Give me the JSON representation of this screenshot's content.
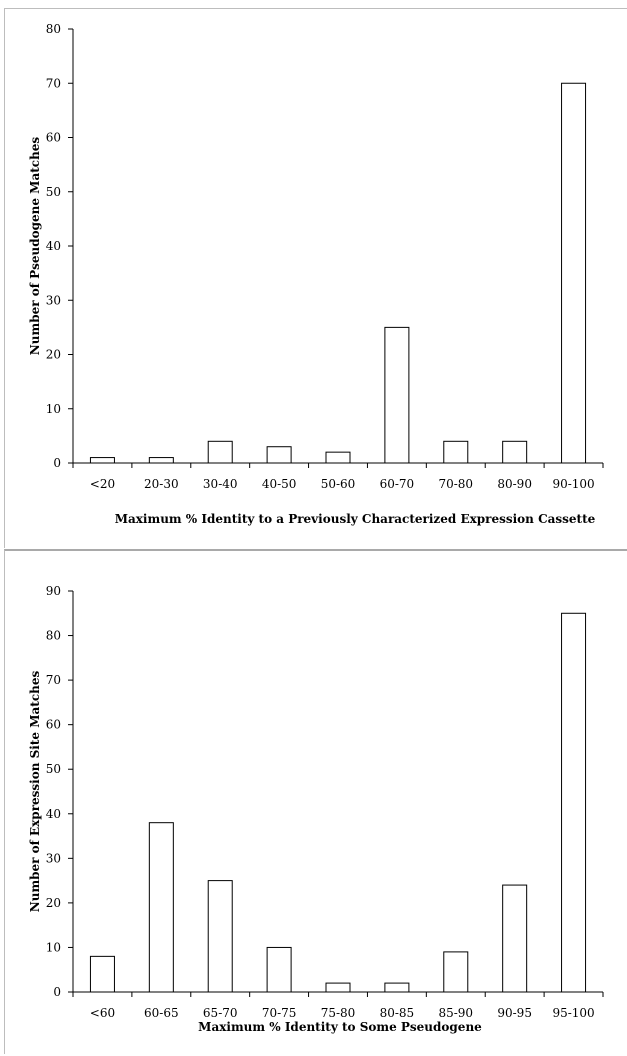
{
  "chart_data": [
    {
      "type": "bar",
      "categories": [
        "<20",
        "20-30",
        "30-40",
        "40-50",
        "50-60",
        "60-70",
        "70-80",
        "80-90",
        "90-100"
      ],
      "values": [
        1,
        1,
        4,
        3,
        2,
        25,
        4,
        4,
        70
      ],
      "title": "",
      "xlabel": "Maximum % Identity to a Previously Characterized Expression Cassette",
      "ylabel": "Number of Pseudogene Matches",
      "ylim": [
        0,
        80
      ],
      "yticks": [
        0,
        10,
        20,
        30,
        40,
        50,
        60,
        70,
        80
      ],
      "grid": false,
      "bar_color": "#ffffff",
      "edge_color": "#000000"
    },
    {
      "type": "bar",
      "categories": [
        "<60",
        "60-65",
        "65-70",
        "70-75",
        "75-80",
        "80-85",
        "85-90",
        "90-95",
        "95-100"
      ],
      "values": [
        8,
        38,
        25,
        10,
        2,
        2,
        9,
        24,
        85
      ],
      "title": "",
      "xlabel": "Maximum % Identity to Some Pseudogene",
      "ylabel": "Number of Expression Site Matches",
      "ylim": [
        0,
        90
      ],
      "yticks": [
        0,
        10,
        20,
        30,
        40,
        50,
        60,
        70,
        80,
        90
      ],
      "grid": false,
      "bar_color": "#ffffff",
      "edge_color": "#000000"
    }
  ]
}
